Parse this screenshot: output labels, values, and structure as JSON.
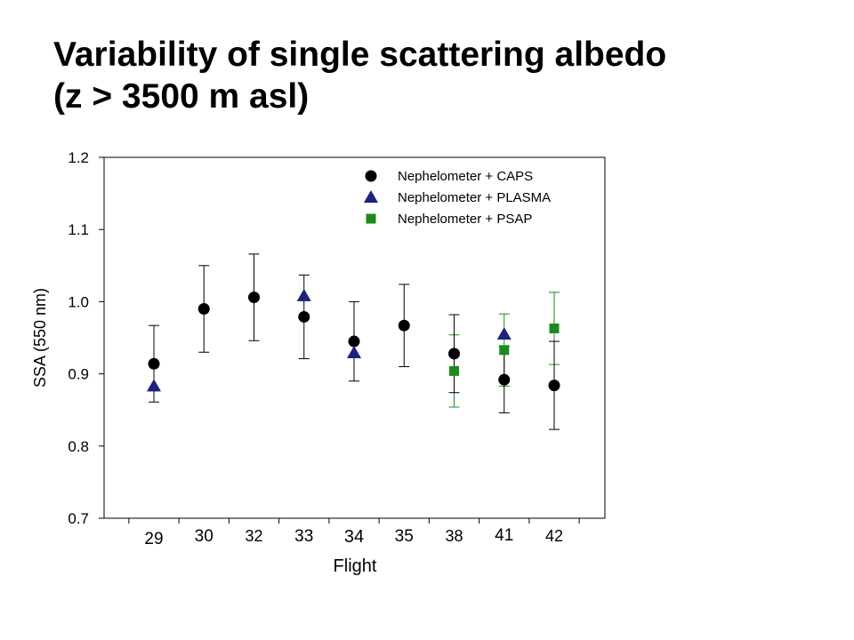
{
  "title": {
    "line1": "Variability of single scattering albedo",
    "line2": "(z > 3500 m asl)"
  },
  "chart_data": {
    "type": "scatter",
    "xlabel": "Flight",
    "ylabel": "SSA (550 nm)",
    "categories": [
      "29",
      "30",
      "32",
      "33",
      "34",
      "35",
      "38",
      "41",
      "42"
    ],
    "ylim": [
      0.7,
      1.2
    ],
    "yticks": [
      "0.7",
      "0.8",
      "0.9",
      "1.0",
      "1.1",
      "1.2"
    ],
    "grid": false,
    "legend_position": "top-right",
    "series": [
      {
        "name": "Nephelometer + CAPS",
        "marker": "circle",
        "color": "#000000",
        "points": [
          {
            "x": "29",
            "y": 0.914,
            "err": 0.053
          },
          {
            "x": "30",
            "y": 0.99,
            "err": 0.06
          },
          {
            "x": "32",
            "y": 1.006,
            "err": 0.06
          },
          {
            "x": "33",
            "y": 0.979,
            "err": 0.058
          },
          {
            "x": "34",
            "y": 0.945,
            "err": 0.055
          },
          {
            "x": "35",
            "y": 0.967,
            "err": 0.057
          },
          {
            "x": "38",
            "y": 0.928,
            "err": 0.054
          },
          {
            "x": "41",
            "y": 0.892,
            "err": 0.046
          },
          {
            "x": "42",
            "y": 0.884,
            "err": 0.061
          }
        ]
      },
      {
        "name": "Nephelometer + PLASMA",
        "marker": "triangle",
        "color": "#1a237e",
        "points": [
          {
            "x": "29",
            "y": 0.883
          },
          {
            "x": "33",
            "y": 1.008
          },
          {
            "x": "34",
            "y": 0.929
          },
          {
            "x": "41",
            "y": 0.955
          }
        ]
      },
      {
        "name": "Nephelometer + PSAP",
        "marker": "square",
        "color": "#1a8a1a",
        "points": [
          {
            "x": "38",
            "y": 0.904,
            "err": 0.05
          },
          {
            "x": "41",
            "y": 0.933,
            "err": 0.05
          },
          {
            "x": "42",
            "y": 0.963,
            "err": 0.05
          }
        ]
      }
    ]
  }
}
